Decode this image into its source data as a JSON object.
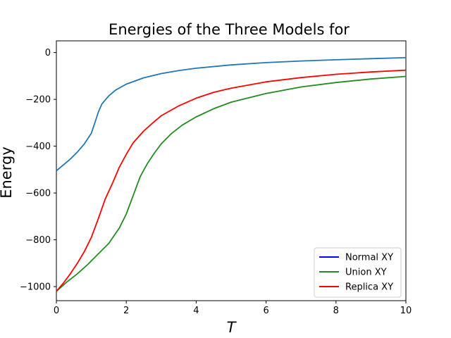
{
  "chart_data": {
    "type": "line",
    "title": "Energies of the Three Models for",
    "xlabel": "T",
    "ylabel": "Energy",
    "xlim": [
      0,
      10
    ],
    "ylim": [
      -1060,
      50
    ],
    "xticks": [
      0,
      2,
      4,
      6,
      8,
      10
    ],
    "yticks": [
      0,
      -200,
      -400,
      -600,
      -800,
      -1000
    ],
    "xtick_labels": [
      "0",
      "2",
      "4",
      "6",
      "8",
      "10"
    ],
    "ytick_labels": [
      "0",
      "−200",
      "−400",
      "−600",
      "−800",
      "−1000"
    ],
    "grid": false,
    "legend_position": "lower-right",
    "series": [
      {
        "name": "Normal XY",
        "legend_color": "#0000ff",
        "line_color": "#1f77b4",
        "x": [
          0,
          0.2,
          0.4,
          0.6,
          0.8,
          1.0,
          1.1,
          1.2,
          1.3,
          1.5,
          1.7,
          2.0,
          2.5,
          3.0,
          3.5,
          4.0,
          5.0,
          6.0,
          7.0,
          8.0,
          9.0,
          10.0
        ],
        "y": [
          -505,
          -480,
          -455,
          -425,
          -390,
          -345,
          -300,
          -255,
          -220,
          -185,
          -160,
          -135,
          -108,
          -90,
          -77,
          -67,
          -53,
          -43,
          -36,
          -31,
          -26,
          -22
        ]
      },
      {
        "name": "Union XY",
        "legend_color": "#228b22",
        "line_color": "#228b22",
        "x": [
          0,
          0.3,
          0.6,
          0.9,
          1.2,
          1.5,
          1.8,
          2.0,
          2.2,
          2.4,
          2.6,
          2.8,
          3.0,
          3.3,
          3.6,
          4.0,
          4.5,
          5.0,
          6.0,
          7.0,
          8.0,
          9.0,
          10.0
        ],
        "y": [
          -1020,
          -980,
          -945,
          -905,
          -860,
          -815,
          -750,
          -690,
          -610,
          -530,
          -475,
          -430,
          -390,
          -345,
          -310,
          -275,
          -240,
          -212,
          -175,
          -147,
          -128,
          -113,
          -102
        ]
      },
      {
        "name": "Replica XY",
        "legend_color": "#ff0000",
        "line_color": "#ff0000",
        "x": [
          0,
          0.2,
          0.4,
          0.6,
          0.8,
          1.0,
          1.2,
          1.4,
          1.6,
          1.8,
          2.0,
          2.2,
          2.5,
          2.8,
          3.0,
          3.5,
          4.0,
          4.5,
          5.0,
          6.0,
          7.0,
          8.0,
          9.0,
          10.0
        ],
        "y": [
          -1020,
          -985,
          -945,
          -900,
          -850,
          -790,
          -710,
          -625,
          -560,
          -490,
          -435,
          -385,
          -335,
          -295,
          -270,
          -228,
          -195,
          -170,
          -152,
          -125,
          -107,
          -93,
          -83,
          -75
        ]
      }
    ]
  }
}
